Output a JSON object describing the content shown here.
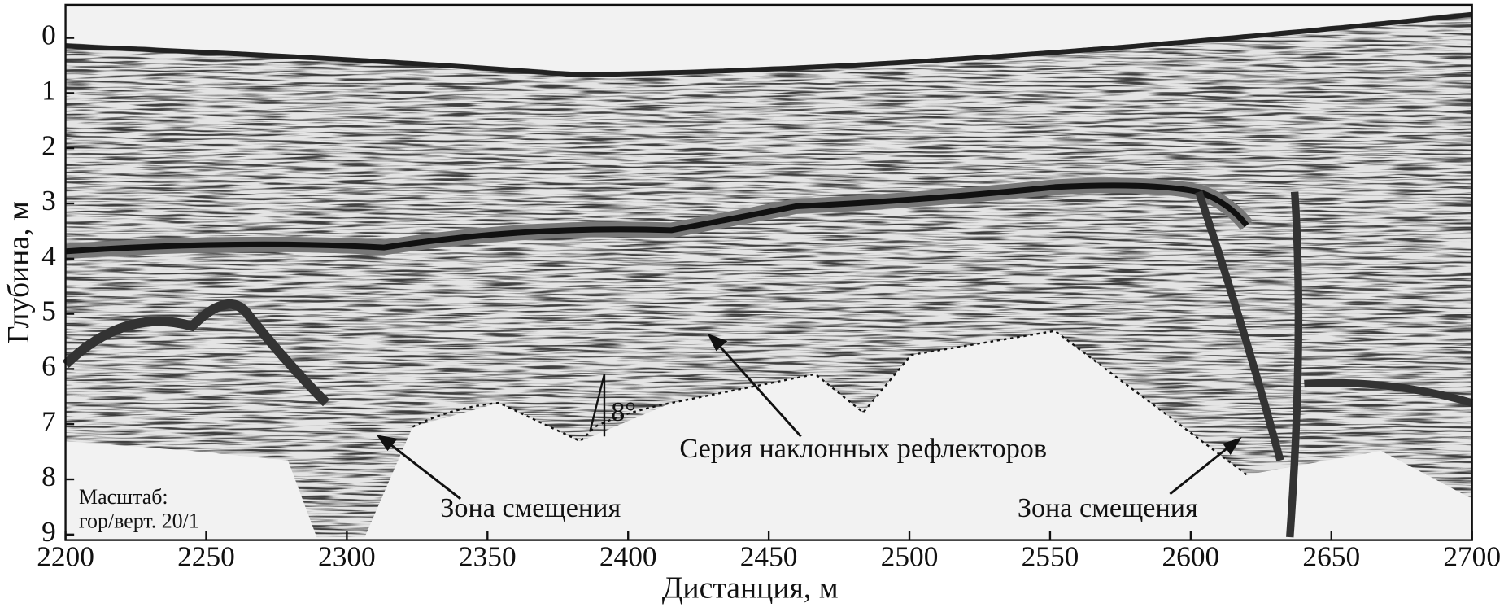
{
  "chart_data": {
    "type": "profile",
    "x_label": "Дистанция, м",
    "y_label": "Глубина, м",
    "xlim": [
      2200,
      2700
    ],
    "xticks": [
      2200,
      2250,
      2300,
      2350,
      2400,
      2450,
      2500,
      2550,
      2600,
      2650,
      2700
    ],
    "ylim": [
      9.1,
      -0.6
    ],
    "yticks": [
      0,
      1,
      2,
      3,
      4,
      5,
      6,
      7,
      8,
      9
    ],
    "annotations": [
      "Серия наклонных  рефлекторов",
      "Зона смещения",
      "Зона смещения",
      "8°"
    ],
    "scale_note": [
      "Масштаб:",
      "гор/верт. 20/1"
    ]
  }
}
